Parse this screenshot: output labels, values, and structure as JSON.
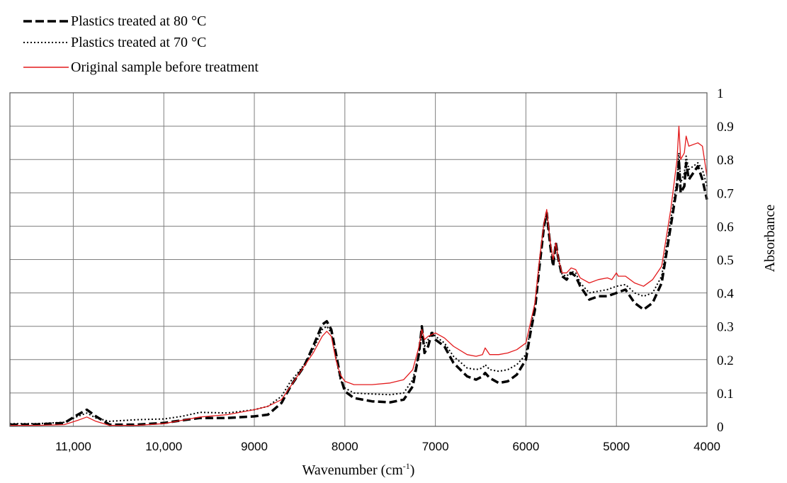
{
  "chart_data": {
    "type": "line",
    "title": "",
    "xlabel": "Wavenumber (cm-1)",
    "xlabel_main": "Wavenumber (cm",
    "xlabel_sup": "-1",
    "xlabel_end": ")",
    "ylabel": "Absorbance",
    "xlim": [
      11700,
      4000
    ],
    "x_reversed": true,
    "ylim": [
      0,
      1
    ],
    "grid": true,
    "legend_position": "top-left",
    "x_ticks": [
      {
        "value": 11000,
        "label": "11,000"
      },
      {
        "value": 10000,
        "label": "10,000"
      },
      {
        "value": 9000,
        "label": "9000"
      },
      {
        "value": 8000,
        "label": "8000"
      },
      {
        "value": 7000,
        "label": "7000"
      },
      {
        "value": 6000,
        "label": "6000"
      },
      {
        "value": 5000,
        "label": "5000"
      },
      {
        "value": 4000,
        "label": "4000"
      }
    ],
    "y_ticks": [
      {
        "value": 0,
        "label": "0"
      },
      {
        "value": 0.1,
        "label": "0.1"
      },
      {
        "value": 0.2,
        "label": "0.2"
      },
      {
        "value": 0.3,
        "label": "0.3"
      },
      {
        "value": 0.4,
        "label": "0.4"
      },
      {
        "value": 0.5,
        "label": "0.5"
      },
      {
        "value": 0.6,
        "label": "0.6"
      },
      {
        "value": 0.7,
        "label": "0.7"
      },
      {
        "value": 0.8,
        "label": "0.8"
      },
      {
        "value": 0.9,
        "label": "0.9"
      },
      {
        "value": 1,
        "label": "1"
      }
    ],
    "series": [
      {
        "name": "Plastics treated at 80 °C",
        "color": "#000000",
        "style": "dashed",
        "points": [
          [
            11700,
            0.005
          ],
          [
            11400,
            0.006
          ],
          [
            11100,
            0.01
          ],
          [
            10950,
            0.035
          ],
          [
            10850,
            0.05
          ],
          [
            10750,
            0.03
          ],
          [
            10600,
            0.005
          ],
          [
            10300,
            0.005
          ],
          [
            10000,
            0.01
          ],
          [
            9800,
            0.018
          ],
          [
            9600,
            0.025
          ],
          [
            9300,
            0.025
          ],
          [
            9000,
            0.03
          ],
          [
            8850,
            0.035
          ],
          [
            8700,
            0.07
          ],
          [
            8600,
            0.12
          ],
          [
            8550,
            0.14
          ],
          [
            8450,
            0.18
          ],
          [
            8350,
            0.24
          ],
          [
            8250,
            0.305
          ],
          [
            8200,
            0.315
          ],
          [
            8150,
            0.29
          ],
          [
            8100,
            0.22
          ],
          [
            8050,
            0.15
          ],
          [
            8000,
            0.105
          ],
          [
            7900,
            0.085
          ],
          [
            7700,
            0.075
          ],
          [
            7500,
            0.072
          ],
          [
            7350,
            0.08
          ],
          [
            7250,
            0.12
          ],
          [
            7180,
            0.22
          ],
          [
            7150,
            0.3
          ],
          [
            7120,
            0.22
          ],
          [
            7080,
            0.24
          ],
          [
            7040,
            0.28
          ],
          [
            7000,
            0.26
          ],
          [
            6900,
            0.24
          ],
          [
            6800,
            0.19
          ],
          [
            6650,
            0.15
          ],
          [
            6550,
            0.14
          ],
          [
            6480,
            0.15
          ],
          [
            6450,
            0.16
          ],
          [
            6400,
            0.145
          ],
          [
            6300,
            0.13
          ],
          [
            6200,
            0.135
          ],
          [
            6100,
            0.155
          ],
          [
            6000,
            0.2
          ],
          [
            5950,
            0.28
          ],
          [
            5900,
            0.35
          ],
          [
            5850,
            0.48
          ],
          [
            5800,
            0.6
          ],
          [
            5770,
            0.64
          ],
          [
            5730,
            0.54
          ],
          [
            5700,
            0.48
          ],
          [
            5670,
            0.55
          ],
          [
            5640,
            0.5
          ],
          [
            5600,
            0.45
          ],
          [
            5550,
            0.44
          ],
          [
            5500,
            0.46
          ],
          [
            5450,
            0.45
          ],
          [
            5400,
            0.42
          ],
          [
            5300,
            0.38
          ],
          [
            5200,
            0.39
          ],
          [
            5100,
            0.39
          ],
          [
            5000,
            0.4
          ],
          [
            4900,
            0.41
          ],
          [
            4800,
            0.37
          ],
          [
            4700,
            0.35
          ],
          [
            4600,
            0.37
          ],
          [
            4500,
            0.43
          ],
          [
            4400,
            0.6
          ],
          [
            4330,
            0.72
          ],
          [
            4310,
            0.8
          ],
          [
            4290,
            0.7
          ],
          [
            4250,
            0.72
          ],
          [
            4230,
            0.79
          ],
          [
            4200,
            0.74
          ],
          [
            4100,
            0.78
          ],
          [
            4050,
            0.74
          ],
          [
            4000,
            0.68
          ]
        ]
      },
      {
        "name": "Plastics treated at 70 °C",
        "color": "#000000",
        "style": "dotted",
        "points": [
          [
            11700,
            0.008
          ],
          [
            11400,
            0.008
          ],
          [
            11100,
            0.012
          ],
          [
            10950,
            0.03
          ],
          [
            10850,
            0.04
          ],
          [
            10750,
            0.025
          ],
          [
            10600,
            0.015
          ],
          [
            10300,
            0.02
          ],
          [
            10000,
            0.022
          ],
          [
            9800,
            0.03
          ],
          [
            9600,
            0.042
          ],
          [
            9300,
            0.04
          ],
          [
            9000,
            0.05
          ],
          [
            8850,
            0.06
          ],
          [
            8700,
            0.09
          ],
          [
            8600,
            0.135
          ],
          [
            8550,
            0.15
          ],
          [
            8450,
            0.185
          ],
          [
            8350,
            0.23
          ],
          [
            8250,
            0.29
          ],
          [
            8200,
            0.3
          ],
          [
            8150,
            0.28
          ],
          [
            8100,
            0.21
          ],
          [
            8050,
            0.14
          ],
          [
            8000,
            0.115
          ],
          [
            7900,
            0.1
          ],
          [
            7700,
            0.097
          ],
          [
            7500,
            0.095
          ],
          [
            7350,
            0.1
          ],
          [
            7250,
            0.14
          ],
          [
            7180,
            0.22
          ],
          [
            7150,
            0.28
          ],
          [
            7120,
            0.24
          ],
          [
            7080,
            0.26
          ],
          [
            7040,
            0.285
          ],
          [
            7000,
            0.27
          ],
          [
            6900,
            0.25
          ],
          [
            6800,
            0.21
          ],
          [
            6650,
            0.175
          ],
          [
            6550,
            0.17
          ],
          [
            6480,
            0.175
          ],
          [
            6450,
            0.185
          ],
          [
            6400,
            0.17
          ],
          [
            6300,
            0.165
          ],
          [
            6200,
            0.17
          ],
          [
            6100,
            0.185
          ],
          [
            6000,
            0.215
          ],
          [
            5950,
            0.29
          ],
          [
            5900,
            0.36
          ],
          [
            5850,
            0.49
          ],
          [
            5800,
            0.61
          ],
          [
            5770,
            0.64
          ],
          [
            5730,
            0.55
          ],
          [
            5700,
            0.49
          ],
          [
            5670,
            0.54
          ],
          [
            5640,
            0.5
          ],
          [
            5600,
            0.455
          ],
          [
            5550,
            0.45
          ],
          [
            5500,
            0.465
          ],
          [
            5450,
            0.46
          ],
          [
            5400,
            0.43
          ],
          [
            5300,
            0.4
          ],
          [
            5200,
            0.405
          ],
          [
            5100,
            0.41
          ],
          [
            5000,
            0.42
          ],
          [
            4900,
            0.425
          ],
          [
            4800,
            0.4
          ],
          [
            4700,
            0.39
          ],
          [
            4600,
            0.4
          ],
          [
            4500,
            0.45
          ],
          [
            4400,
            0.62
          ],
          [
            4330,
            0.74
          ],
          [
            4310,
            0.82
          ],
          [
            4290,
            0.73
          ],
          [
            4250,
            0.76
          ],
          [
            4230,
            0.81
          ],
          [
            4200,
            0.77
          ],
          [
            4100,
            0.79
          ],
          [
            4050,
            0.77
          ],
          [
            4000,
            0.72
          ]
        ]
      },
      {
        "name": "Original sample before treatment",
        "color": "#e31a1c",
        "style": "solid",
        "points": [
          [
            11700,
            0.003
          ],
          [
            11400,
            0.003
          ],
          [
            11100,
            0.005
          ],
          [
            10950,
            0.018
          ],
          [
            10850,
            0.028
          ],
          [
            10750,
            0.015
          ],
          [
            10600,
            0.003
          ],
          [
            10300,
            0.003
          ],
          [
            10000,
            0.008
          ],
          [
            9800,
            0.018
          ],
          [
            9600,
            0.028
          ],
          [
            9300,
            0.035
          ],
          [
            9000,
            0.05
          ],
          [
            8850,
            0.06
          ],
          [
            8700,
            0.08
          ],
          [
            8600,
            0.12
          ],
          [
            8550,
            0.14
          ],
          [
            8450,
            0.18
          ],
          [
            8350,
            0.22
          ],
          [
            8250,
            0.27
          ],
          [
            8200,
            0.285
          ],
          [
            8150,
            0.27
          ],
          [
            8100,
            0.2
          ],
          [
            8050,
            0.155
          ],
          [
            8000,
            0.135
          ],
          [
            7900,
            0.125
          ],
          [
            7700,
            0.125
          ],
          [
            7500,
            0.13
          ],
          [
            7350,
            0.14
          ],
          [
            7250,
            0.17
          ],
          [
            7180,
            0.24
          ],
          [
            7150,
            0.29
          ],
          [
            7120,
            0.26
          ],
          [
            7080,
            0.27
          ],
          [
            7040,
            0.275
          ],
          [
            7000,
            0.28
          ],
          [
            6900,
            0.265
          ],
          [
            6800,
            0.24
          ],
          [
            6650,
            0.215
          ],
          [
            6550,
            0.21
          ],
          [
            6480,
            0.215
          ],
          [
            6450,
            0.235
          ],
          [
            6400,
            0.215
          ],
          [
            6300,
            0.215
          ],
          [
            6200,
            0.22
          ],
          [
            6100,
            0.23
          ],
          [
            6000,
            0.25
          ],
          [
            5950,
            0.31
          ],
          [
            5900,
            0.37
          ],
          [
            5850,
            0.5
          ],
          [
            5800,
            0.61
          ],
          [
            5770,
            0.65
          ],
          [
            5730,
            0.55
          ],
          [
            5700,
            0.5
          ],
          [
            5670,
            0.55
          ],
          [
            5640,
            0.5
          ],
          [
            5600,
            0.46
          ],
          [
            5550,
            0.46
          ],
          [
            5500,
            0.475
          ],
          [
            5450,
            0.47
          ],
          [
            5400,
            0.445
          ],
          [
            5300,
            0.43
          ],
          [
            5200,
            0.44
          ],
          [
            5100,
            0.445
          ],
          [
            5050,
            0.44
          ],
          [
            5000,
            0.46
          ],
          [
            4980,
            0.45
          ],
          [
            4900,
            0.45
          ],
          [
            4800,
            0.43
          ],
          [
            4700,
            0.42
          ],
          [
            4600,
            0.44
          ],
          [
            4500,
            0.48
          ],
          [
            4400,
            0.65
          ],
          [
            4330,
            0.8
          ],
          [
            4310,
            0.9
          ],
          [
            4290,
            0.8
          ],
          [
            4250,
            0.82
          ],
          [
            4230,
            0.87
          ],
          [
            4200,
            0.84
          ],
          [
            4100,
            0.85
          ],
          [
            4050,
            0.84
          ],
          [
            4000,
            0.75
          ]
        ]
      }
    ]
  }
}
